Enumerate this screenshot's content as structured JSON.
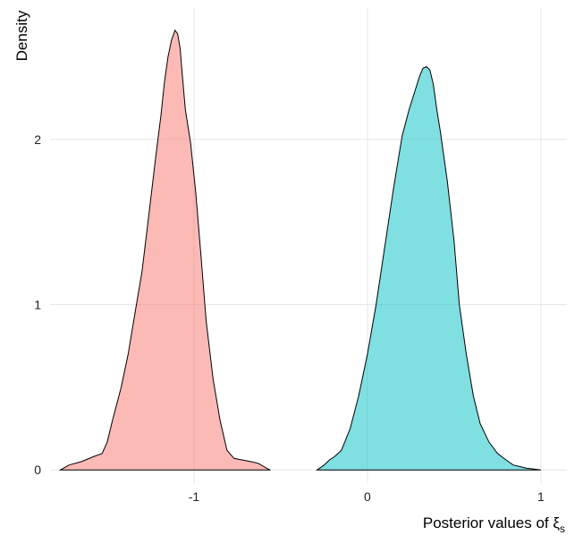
{
  "chart_data": {
    "type": "area",
    "title": "",
    "xlabel": "Posterior values of ",
    "xlabel_symbol": "ξ",
    "xlabel_subscript": "s",
    "ylabel": "Density",
    "xlim": [
      -1.83,
      1.15
    ],
    "ylim": [
      -0.08,
      2.8
    ],
    "x_ticks": [
      -1,
      0,
      1
    ],
    "x_tick_labels": [
      "-1",
      "0",
      "1"
    ],
    "y_ticks": [
      0,
      1,
      2
    ],
    "y_tick_labels": [
      "0",
      "1",
      "2"
    ],
    "grid": true,
    "legend": "none",
    "series": [
      {
        "color": "#f8766d",
        "fill_opacity": 0.5,
        "x": [
          -1.77,
          -1.72,
          -1.65,
          -1.58,
          -1.53,
          -1.5,
          -1.47,
          -1.42,
          -1.38,
          -1.34,
          -1.3,
          -1.26,
          -1.22,
          -1.19,
          -1.17,
          -1.15,
          -1.13,
          -1.11,
          -1.095,
          -1.08,
          -1.07,
          -1.05,
          -1.02,
          -0.99,
          -0.96,
          -0.93,
          -0.89,
          -0.85,
          -0.81,
          -0.77,
          -0.72,
          -0.67,
          -0.63,
          -0.58,
          -0.56
        ],
        "y": [
          0.0,
          0.03,
          0.05,
          0.08,
          0.1,
          0.17,
          0.3,
          0.5,
          0.7,
          0.95,
          1.2,
          1.55,
          1.9,
          2.15,
          2.35,
          2.5,
          2.6,
          2.66,
          2.64,
          2.55,
          2.42,
          2.18,
          1.98,
          1.68,
          1.3,
          0.9,
          0.55,
          0.3,
          0.12,
          0.07,
          0.06,
          0.05,
          0.04,
          0.01,
          0.0
        ]
      },
      {
        "color": "#00bfc4",
        "fill_opacity": 0.5,
        "x": [
          -0.29,
          -0.25,
          -0.22,
          -0.19,
          -0.15,
          -0.1,
          -0.05,
          0.0,
          0.05,
          0.1,
          0.15,
          0.2,
          0.24,
          0.27,
          0.3,
          0.32,
          0.34,
          0.36,
          0.38,
          0.4,
          0.42,
          0.46,
          0.5,
          0.53,
          0.57,
          0.61,
          0.65,
          0.7,
          0.75,
          0.8,
          0.84,
          0.88,
          0.92,
          0.96,
          1.0
        ],
        "y": [
          0.0,
          0.03,
          0.06,
          0.08,
          0.12,
          0.25,
          0.45,
          0.7,
          1.0,
          1.35,
          1.7,
          2.02,
          2.18,
          2.28,
          2.38,
          2.43,
          2.44,
          2.42,
          2.33,
          2.18,
          2.05,
          1.75,
          1.38,
          1.0,
          0.7,
          0.45,
          0.28,
          0.17,
          0.1,
          0.06,
          0.03,
          0.02,
          0.01,
          0.005,
          0.0
        ]
      }
    ]
  }
}
